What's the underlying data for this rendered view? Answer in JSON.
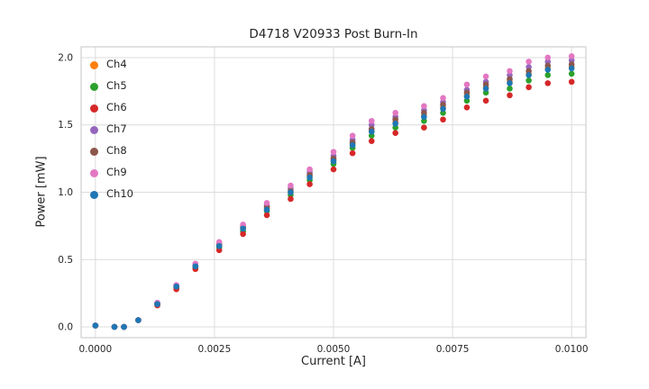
{
  "figure": {
    "background": "#ffffff",
    "grid_color": "#dcdcdc",
    "spine_color": "#cfcfcf",
    "text_color": "#262626",
    "tick_label_color": "#262626"
  },
  "chart_data": {
    "type": "scatter",
    "title": "D4718 V20933 Post Burn-In",
    "xlabel": "Current [A]",
    "ylabel": "Power [mW]",
    "grid": true,
    "legend_position": "upper left",
    "xlim": [
      -0.0003,
      0.0103
    ],
    "ylim": [
      -0.08,
      2.08
    ],
    "xticks": {
      "values": [
        0.0,
        0.0025,
        0.005,
        0.0075,
        0.01
      ],
      "labels": [
        "0.0000",
        "0.0025",
        "0.0050",
        "0.0075",
        "0.0100"
      ]
    },
    "yticks": {
      "values": [
        0.0,
        0.5,
        1.0,
        1.5,
        2.0
      ],
      "labels": [
        "0.0",
        "0.5",
        "1.0",
        "1.5",
        "2.0"
      ]
    },
    "x": [
      0.0,
      0.0004,
      0.0006,
      0.0009,
      0.0013,
      0.0017,
      0.0021,
      0.0026,
      0.0031,
      0.0036,
      0.0041,
      0.0045,
      0.005,
      0.0054,
      0.0058,
      0.0063,
      0.0069,
      0.0073,
      0.0078,
      0.0082,
      0.0087,
      0.0091,
      0.0095,
      0.01
    ],
    "series": [
      {
        "name": "Ch4",
        "color": "#ff7f0e",
        "values": [
          0.01,
          0.0,
          0.0,
          0.05,
          0.17,
          0.3,
          0.45,
          0.6,
          0.73,
          0.88,
          1.0,
          1.12,
          1.24,
          1.36,
          1.46,
          1.52,
          1.57,
          1.63,
          1.72,
          1.78,
          1.82,
          1.88,
          1.92,
          1.93
        ]
      },
      {
        "name": "Ch5",
        "color": "#2ca02c",
        "values": [
          0.01,
          0.0,
          0.0,
          0.05,
          0.17,
          0.29,
          0.44,
          0.59,
          0.71,
          0.86,
          0.98,
          1.09,
          1.21,
          1.33,
          1.42,
          1.48,
          1.53,
          1.59,
          1.68,
          1.74,
          1.77,
          1.83,
          1.87,
          1.88
        ]
      },
      {
        "name": "Ch6",
        "color": "#d62728",
        "values": [
          0.01,
          0.0,
          0.0,
          0.05,
          0.16,
          0.28,
          0.43,
          0.57,
          0.69,
          0.83,
          0.95,
          1.06,
          1.17,
          1.29,
          1.38,
          1.44,
          1.48,
          1.54,
          1.63,
          1.68,
          1.72,
          1.78,
          1.81,
          1.82
        ]
      },
      {
        "name": "Ch7",
        "color": "#9467bd",
        "values": [
          0.01,
          0.0,
          0.0,
          0.05,
          0.17,
          0.31,
          0.46,
          0.62,
          0.75,
          0.9,
          1.03,
          1.15,
          1.27,
          1.39,
          1.5,
          1.56,
          1.61,
          1.67,
          1.76,
          1.82,
          1.87,
          1.93,
          1.97,
          1.98
        ]
      },
      {
        "name": "Ch8",
        "color": "#8c564b",
        "values": [
          0.01,
          0.0,
          0.0,
          0.05,
          0.17,
          0.3,
          0.45,
          0.61,
          0.74,
          0.89,
          1.01,
          1.13,
          1.25,
          1.37,
          1.47,
          1.54,
          1.59,
          1.65,
          1.74,
          1.8,
          1.84,
          1.9,
          1.94,
          1.95
        ]
      },
      {
        "name": "Ch9",
        "color": "#e377c2",
        "values": [
          0.01,
          0.0,
          0.0,
          0.05,
          0.18,
          0.31,
          0.47,
          0.63,
          0.76,
          0.92,
          1.05,
          1.17,
          1.3,
          1.42,
          1.53,
          1.59,
          1.64,
          1.7,
          1.8,
          1.86,
          1.9,
          1.97,
          2.0,
          2.01
        ]
      },
      {
        "name": "Ch10",
        "color": "#1f77b4",
        "values": [
          0.01,
          0.0,
          0.0,
          0.05,
          0.17,
          0.3,
          0.45,
          0.6,
          0.73,
          0.87,
          1.0,
          1.11,
          1.23,
          1.35,
          1.45,
          1.51,
          1.56,
          1.62,
          1.71,
          1.77,
          1.81,
          1.87,
          1.91,
          1.92
        ]
      }
    ]
  }
}
